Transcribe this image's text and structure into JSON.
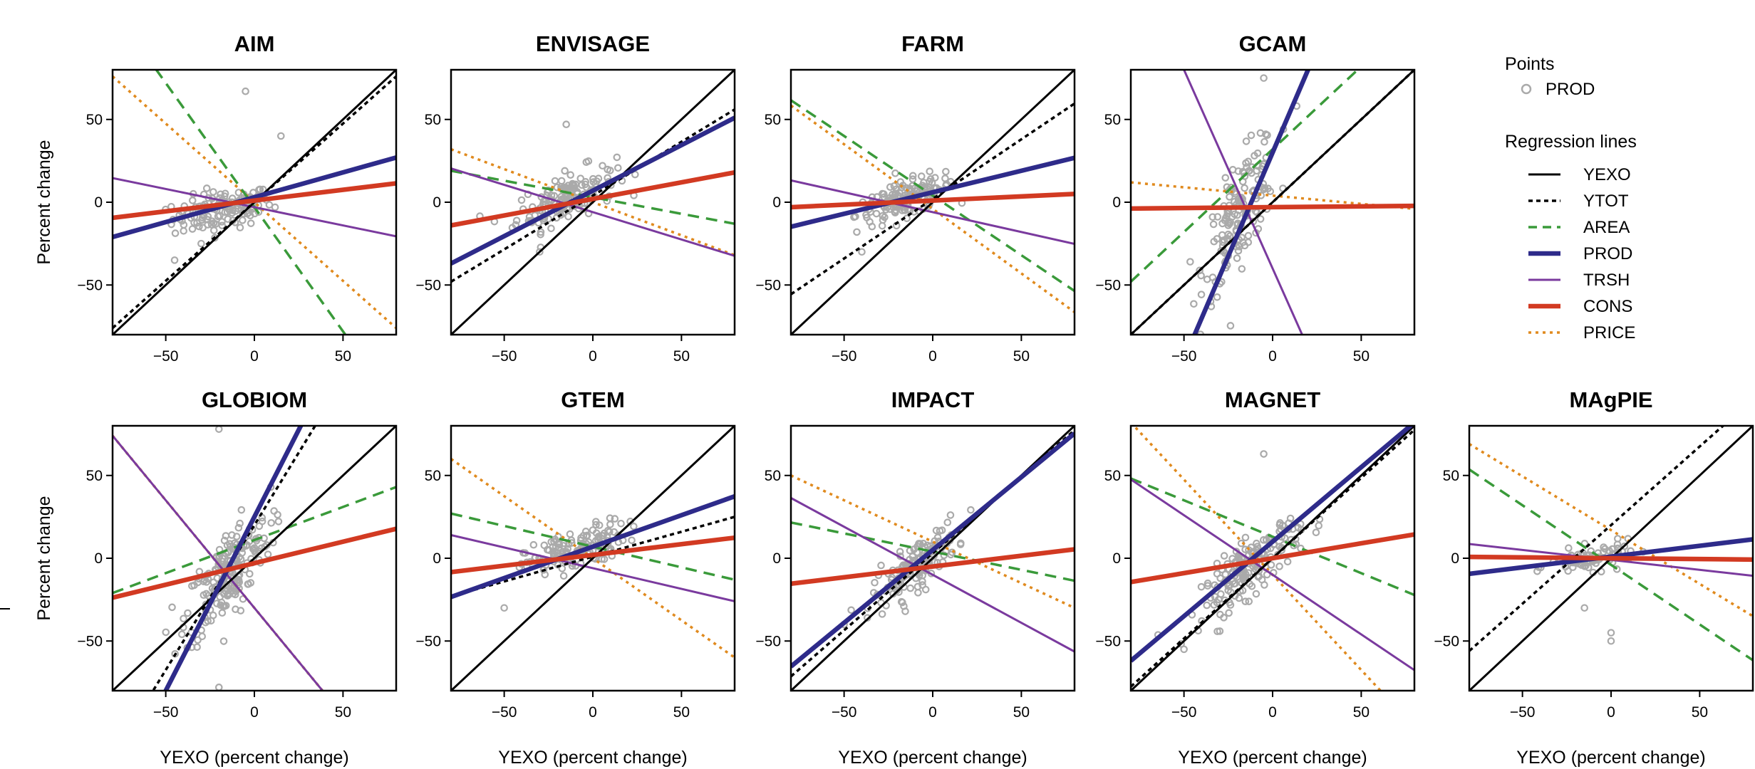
{
  "chart_data": {
    "type": "scatter",
    "xlabel": "YEXO (percent change)",
    "ylabel": "Percent change",
    "xlim": [
      -80,
      80
    ],
    "ylim": [
      -80,
      80
    ],
    "xticks": [
      -50,
      0,
      50
    ],
    "yticks": [
      -50,
      0,
      50
    ],
    "grid": false,
    "legend": {
      "points_title": "Points",
      "points": [
        {
          "name": "PROD",
          "marker": "open-circle",
          "color": "#aaaaaa"
        }
      ],
      "lines_title": "Regression lines",
      "lines": [
        {
          "name": "YEXO",
          "color": "#000000",
          "style": "solid"
        },
        {
          "name": "YTOT",
          "color": "#000000",
          "style": "dotted"
        },
        {
          "name": "AREA",
          "color": "#3a9a3a",
          "style": "dashed"
        },
        {
          "name": "PROD",
          "color": "#2e2b8a",
          "style": "solid-thick"
        },
        {
          "name": "TRSH",
          "color": "#7a3a9e",
          "style": "solid"
        },
        {
          "name": "CONS",
          "color": "#d23a22",
          "style": "solid-thick"
        },
        {
          "name": "PRICE",
          "color": "#e08a1e",
          "style": "dotted"
        }
      ]
    },
    "panels": [
      {
        "title": "AIM",
        "cloud": {
          "cx": -18,
          "cy": -5,
          "sx": 14,
          "sy": 10,
          "n": 130,
          "slope": 0.2,
          "outliers": [
            [
              -5,
              67
            ],
            [
              15,
              40
            ],
            [
              -45,
              -35
            ],
            [
              -30,
              -25
            ]
          ]
        },
        "lines": {
          "YEXO": [
            1,
            0
          ],
          "YTOT": [
            0.95,
            0
          ],
          "AREA": [
            -1.5,
            -3
          ],
          "PROD": [
            0.3,
            3
          ],
          "TRSH": [
            -0.22,
            -3
          ],
          "CONS": [
            0.13,
            1
          ],
          "PRICE": [
            -0.95,
            0
          ]
        }
      },
      {
        "title": "ENVISAGE",
        "cloud": {
          "cx": -15,
          "cy": 3,
          "sx": 14,
          "sy": 12,
          "n": 140,
          "slope": 0.45,
          "outliers": [
            [
              -15,
              47
            ],
            [
              -30,
              -30
            ]
          ]
        },
        "lines": {
          "YEXO": [
            1,
            0
          ],
          "YTOT": [
            0.65,
            4
          ],
          "AREA": [
            -0.2,
            3
          ],
          "PROD": [
            0.55,
            7
          ],
          "TRSH": [
            -0.33,
            -6
          ],
          "CONS": [
            0.2,
            2
          ],
          "PRICE": [
            -0.4,
            0
          ]
        }
      },
      {
        "title": "FARM",
        "cloud": {
          "cx": -15,
          "cy": 2,
          "sx": 14,
          "sy": 9,
          "n": 140,
          "slope": 0.4,
          "outliers": [
            [
              -40,
              -30
            ]
          ]
        },
        "lines": {
          "YEXO": [
            1,
            0
          ],
          "YTOT": [
            0.72,
            2
          ],
          "AREA": [
            -0.72,
            4
          ],
          "PROD": [
            0.26,
            6
          ],
          "TRSH": [
            -0.24,
            -6
          ],
          "CONS": [
            0.05,
            1
          ],
          "PRICE": [
            -0.78,
            -4
          ]
        }
      },
      {
        "title": "GCAM",
        "cloud": {
          "cx": -18,
          "cy": -5,
          "sx": 10,
          "sy": 25,
          "n": 150,
          "slope": 1.8,
          "outliers": [
            [
              -5,
              75
            ],
            [
              -35,
              -60
            ]
          ]
        },
        "lines": {
          "YEXO": [
            1,
            0
          ],
          "YTOT": [
            1.0,
            0
          ],
          "AREA": [
            1.0,
            32
          ],
          "PROD": [
            2.5,
            30
          ],
          "TRSH": [
            -2.4,
            -40
          ],
          "CONS": [
            0.01,
            -3
          ],
          "PRICE": [
            -0.1,
            4
          ]
        }
      },
      {
        "title": "GLOBIOM",
        "cloud": {
          "cx": -15,
          "cy": -10,
          "sx": 12,
          "sy": 22,
          "n": 200,
          "slope": 1.2,
          "outliers": [
            [
              -20,
              78
            ],
            [
              -20,
              -78
            ]
          ]
        },
        "lines": {
          "YEXO": [
            1,
            0
          ],
          "YTOT": [
            1.75,
            20
          ],
          "AREA": [
            0.4,
            11
          ],
          "PROD": [
            2.1,
            25
          ],
          "TRSH": [
            -1.3,
            -30
          ],
          "CONS": [
            0.26,
            -3
          ],
          "PRICE": [
            -1.3,
            -30
          ]
        }
      },
      {
        "title": "GTEM",
        "cloud": {
          "cx": -10,
          "cy": 5,
          "sx": 14,
          "sy": 10,
          "n": 140,
          "slope": 0.4,
          "outliers": [
            [
              -50,
              -30
            ]
          ]
        },
        "lines": {
          "YEXO": [
            1,
            0
          ],
          "YTOT": [
            0.3,
            1
          ],
          "AREA": [
            -0.25,
            7
          ],
          "PROD": [
            0.38,
            7
          ],
          "TRSH": [
            -0.25,
            -6
          ],
          "CONS": [
            0.13,
            2
          ],
          "PRICE": [
            -0.75,
            0
          ]
        }
      },
      {
        "title": "IMPACT",
        "cloud": {
          "cx": -10,
          "cy": -5,
          "sx": 12,
          "sy": 12,
          "n": 140,
          "slope": 0.9,
          "outliers": [
            [
              -50,
              -40
            ]
          ]
        },
        "lines": {
          "YEXO": [
            1,
            0
          ],
          "YTOT": [
            0.93,
            3
          ],
          "AREA": [
            -0.22,
            4
          ],
          "PROD": [
            0.88,
            5
          ],
          "TRSH": [
            -0.58,
            -10
          ],
          "CONS": [
            0.13,
            -5
          ],
          "PRICE": [
            -0.5,
            10
          ]
        }
      },
      {
        "title": "MAGNET",
        "cloud": {
          "cx": -12,
          "cy": -5,
          "sx": 14,
          "sy": 14,
          "n": 170,
          "slope": 0.9,
          "outliers": [
            [
              -5,
              63
            ],
            [
              -50,
              -55
            ]
          ]
        },
        "lines": {
          "YEXO": [
            1,
            0
          ],
          "YTOT": [
            0.97,
            0
          ],
          "AREA": [
            -0.44,
            13
          ],
          "PROD": [
            0.9,
            10
          ],
          "TRSH": [
            -0.72,
            -10
          ],
          "CONS": [
            0.18,
            0
          ],
          "PRICE": [
            -1.15,
            -10
          ]
        }
      },
      {
        "title": "MAgPIE",
        "cloud": {
          "cx": -10,
          "cy": 0,
          "sx": 12,
          "sy": 6,
          "n": 80,
          "slope": 0.2,
          "outliers": [
            [
              0,
              -45
            ],
            [
              0,
              -50
            ],
            [
              -15,
              -30
            ]
          ]
        },
        "lines": {
          "YEXO": [
            1,
            0
          ],
          "YTOT": [
            0.95,
            20
          ],
          "AREA": [
            -0.72,
            -4
          ],
          "PROD": [
            0.13,
            1
          ],
          "TRSH": [
            -0.12,
            -1
          ],
          "CONS": [
            -0.01,
            0
          ],
          "PRICE": [
            -0.65,
            17
          ]
        }
      }
    ]
  }
}
